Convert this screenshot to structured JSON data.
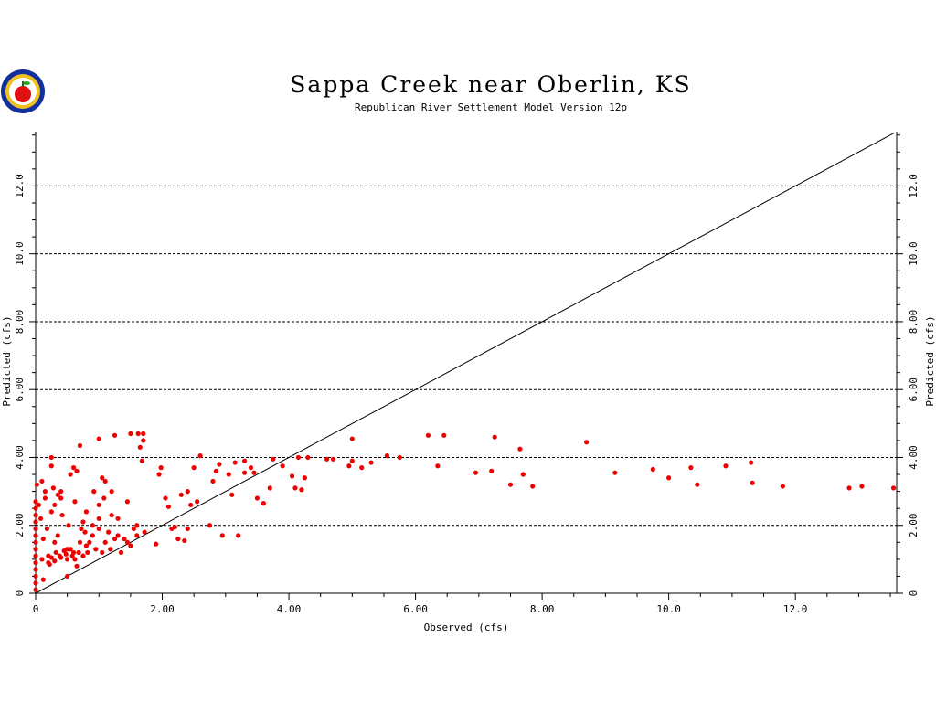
{
  "chart_data": {
    "type": "scatter",
    "title": "Sappa Creek near Oberlin, KS",
    "subtitle": "Republican River Settlement Model Version 12p",
    "xlabel": "Observed (cfs)",
    "ylabel": "Predicted (cfs)",
    "xlim": [
      0,
      13.6
    ],
    "ylim": [
      0,
      13.6
    ],
    "x_ticks": [
      0,
      2,
      4,
      6,
      8,
      10,
      12
    ],
    "x_tick_labels": [
      "0",
      "2.00",
      "4.00",
      "6.00",
      "8.00",
      "10.0",
      "12.0"
    ],
    "y_ticks": [
      0,
      2,
      4,
      6,
      8,
      10,
      12
    ],
    "y_tick_labels": [
      "0",
      "2.00",
      "4.00",
      "6.00",
      "8.00",
      "10.0",
      "12.0"
    ],
    "gridlines": "dashed horizontal at y ticks",
    "reference_line": "1:1",
    "colors": {
      "points": "#ee0000",
      "line": "#000000",
      "grid": "#000000"
    },
    "logo_icon": "apple-logo-icon",
    "points": [
      [
        0,
        0.1
      ],
      [
        0,
        0.3
      ],
      [
        0,
        0.5
      ],
      [
        0,
        0.7
      ],
      [
        0,
        0.9
      ],
      [
        0,
        1.1
      ],
      [
        0,
        1.3
      ],
      [
        0,
        1.5
      ],
      [
        0,
        1.7
      ],
      [
        0,
        1.9
      ],
      [
        0,
        2.1
      ],
      [
        0,
        2.3
      ],
      [
        0,
        2.5
      ],
      [
        0,
        2.7
      ],
      [
        0.02,
        3.2
      ],
      [
        0.05,
        2.6
      ],
      [
        0.08,
        2.2
      ],
      [
        0.1,
        1.0
      ],
      [
        0.1,
        3.3
      ],
      [
        0.12,
        0.4
      ],
      [
        0.12,
        1.6
      ],
      [
        0.15,
        2.8
      ],
      [
        0.15,
        3.0
      ],
      [
        0.18,
        1.9
      ],
      [
        0.2,
        0.9
      ],
      [
        0.2,
        1.1
      ],
      [
        0.22,
        0.85
      ],
      [
        0.25,
        1.05
      ],
      [
        0.25,
        2.4
      ],
      [
        0.25,
        3.75
      ],
      [
        0.25,
        4.0
      ],
      [
        0.28,
        3.1
      ],
      [
        0.3,
        0.95
      ],
      [
        0.3,
        1.5
      ],
      [
        0.3,
        2.6
      ],
      [
        0.32,
        1.2
      ],
      [
        0.35,
        1.7
      ],
      [
        0.35,
        2.9
      ],
      [
        0.38,
        1.1
      ],
      [
        0.4,
        1.05
      ],
      [
        0.4,
        2.8
      ],
      [
        0.4,
        3.0
      ],
      [
        0.42,
        2.3
      ],
      [
        0.45,
        1.25
      ],
      [
        0.48,
        1.15
      ],
      [
        0.5,
        0.5
      ],
      [
        0.5,
        1.0
      ],
      [
        0.5,
        1.3
      ],
      [
        0.52,
        2.0
      ],
      [
        0.55,
        3.5
      ],
      [
        0.55,
        1.3
      ],
      [
        0.58,
        1.1
      ],
      [
        0.6,
        1.2
      ],
      [
        0.6,
        3.7
      ],
      [
        0.62,
        1.0
      ],
      [
        0.62,
        2.7
      ],
      [
        0.65,
        0.8
      ],
      [
        0.65,
        3.6
      ],
      [
        0.68,
        1.2
      ],
      [
        0.7,
        4.35
      ],
      [
        0.7,
        1.5
      ],
      [
        0.72,
        1.9
      ],
      [
        0.75,
        1.1
      ],
      [
        0.75,
        2.1
      ],
      [
        0.78,
        1.8
      ],
      [
        0.8,
        1.4
      ],
      [
        0.8,
        2.4
      ],
      [
        0.82,
        1.2
      ],
      [
        0.85,
        1.5
      ],
      [
        0.9,
        1.7
      ],
      [
        0.9,
        2.0
      ],
      [
        0.92,
        3.0
      ],
      [
        0.95,
        1.3
      ],
      [
        1.0,
        4.55
      ],
      [
        1.0,
        1.9
      ],
      [
        1.0,
        2.2
      ],
      [
        1.0,
        2.6
      ],
      [
        1.05,
        1.2
      ],
      [
        1.05,
        3.4
      ],
      [
        1.08,
        2.8
      ],
      [
        1.1,
        1.5
      ],
      [
        1.1,
        3.3
      ],
      [
        1.15,
        1.8
      ],
      [
        1.18,
        1.3
      ],
      [
        1.2,
        2.3
      ],
      [
        1.2,
        3.0
      ],
      [
        1.25,
        1.6
      ],
      [
        1.25,
        4.65
      ],
      [
        1.3,
        1.7
      ],
      [
        1.3,
        2.2
      ],
      [
        1.35,
        1.2
      ],
      [
        1.4,
        1.6
      ],
      [
        1.45,
        1.5
      ],
      [
        1.45,
        2.7
      ],
      [
        1.5,
        4.7
      ],
      [
        1.5,
        1.4
      ],
      [
        1.55,
        1.9
      ],
      [
        1.6,
        1.7
      ],
      [
        1.6,
        2.0
      ],
      [
        1.62,
        4.7
      ],
      [
        1.65,
        4.3
      ],
      [
        1.68,
        3.9
      ],
      [
        1.7,
        4.7
      ],
      [
        1.7,
        4.5
      ],
      [
        1.72,
        1.8
      ],
      [
        1.9,
        1.45
      ],
      [
        1.95,
        3.5
      ],
      [
        1.98,
        3.7
      ],
      [
        2.05,
        2.8
      ],
      [
        2.1,
        2.55
      ],
      [
        2.15,
        1.9
      ],
      [
        2.2,
        1.95
      ],
      [
        2.25,
        1.6
      ],
      [
        2.3,
        2.9
      ],
      [
        2.35,
        1.55
      ],
      [
        2.4,
        3.0
      ],
      [
        2.4,
        1.9
      ],
      [
        2.45,
        2.6
      ],
      [
        2.5,
        3.7
      ],
      [
        2.55,
        2.7
      ],
      [
        2.6,
        4.05
      ],
      [
        2.75,
        2.0
      ],
      [
        2.8,
        3.3
      ],
      [
        2.85,
        3.6
      ],
      [
        2.9,
        3.8
      ],
      [
        2.95,
        1.7
      ],
      [
        3.05,
        3.5
      ],
      [
        3.1,
        2.9
      ],
      [
        3.15,
        3.85
      ],
      [
        3.2,
        1.7
      ],
      [
        3.3,
        3.9
      ],
      [
        3.3,
        3.55
      ],
      [
        3.4,
        3.7
      ],
      [
        3.45,
        3.55
      ],
      [
        3.5,
        2.8
      ],
      [
        3.6,
        2.65
      ],
      [
        3.7,
        3.1
      ],
      [
        3.75,
        3.95
      ],
      [
        3.9,
        3.75
      ],
      [
        4.05,
        3.45
      ],
      [
        4.1,
        3.1
      ],
      [
        4.15,
        4.0
      ],
      [
        4.2,
        3.05
      ],
      [
        4.25,
        3.4
      ],
      [
        4.3,
        4.0
      ],
      [
        4.6,
        3.95
      ],
      [
        4.7,
        3.95
      ],
      [
        4.95,
        3.75
      ],
      [
        5.0,
        3.9
      ],
      [
        5.0,
        4.55
      ],
      [
        5.15,
        3.7
      ],
      [
        5.3,
        3.85
      ],
      [
        5.55,
        4.05
      ],
      [
        5.75,
        4.0
      ],
      [
        6.2,
        4.65
      ],
      [
        6.35,
        3.75
      ],
      [
        6.45,
        4.65
      ],
      [
        6.95,
        3.55
      ],
      [
        7.2,
        3.6
      ],
      [
        7.25,
        4.6
      ],
      [
        7.5,
        3.2
      ],
      [
        7.65,
        4.25
      ],
      [
        7.7,
        3.5
      ],
      [
        7.85,
        3.15
      ],
      [
        8.7,
        4.45
      ],
      [
        9.15,
        3.55
      ],
      [
        9.75,
        3.65
      ],
      [
        10.0,
        3.4
      ],
      [
        10.35,
        3.7
      ],
      [
        10.45,
        3.2
      ],
      [
        10.9,
        3.75
      ],
      [
        11.3,
        3.85
      ],
      [
        11.32,
        3.25
      ],
      [
        11.8,
        3.15
      ],
      [
        12.85,
        3.1
      ],
      [
        13.05,
        3.15
      ],
      [
        13.55,
        3.1
      ]
    ]
  }
}
